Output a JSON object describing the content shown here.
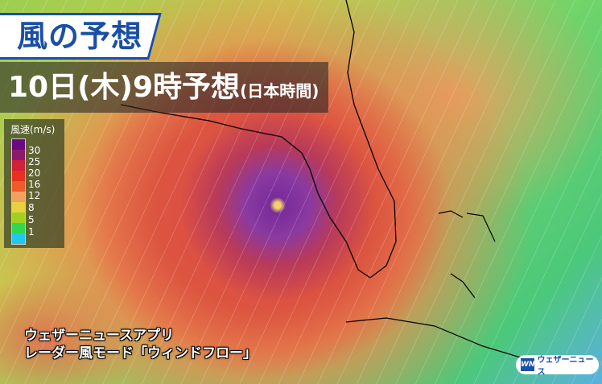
{
  "title": "風の予想",
  "forecast_time": {
    "main": "10日(木)9時予想",
    "note": "(日本時間)"
  },
  "legend": {
    "title": "風速(m/s)",
    "labels": [
      "30",
      "25",
      "20",
      "16",
      "12",
      "8",
      "5",
      "1"
    ],
    "colors": [
      "#6a0a80",
      "#8a1a6a",
      "#d0203a",
      "#e83020",
      "#f05a28",
      "#f0a060",
      "#e8d040",
      "#a0d020",
      "#30d850",
      "#20c8f0"
    ]
  },
  "caption": {
    "line1": "ウェザーニュースアプリ",
    "line2": "レーダー風モード「ウィンドフロー」"
  },
  "logo": {
    "mark": "WN",
    "text": "ウェザーニュース"
  }
}
